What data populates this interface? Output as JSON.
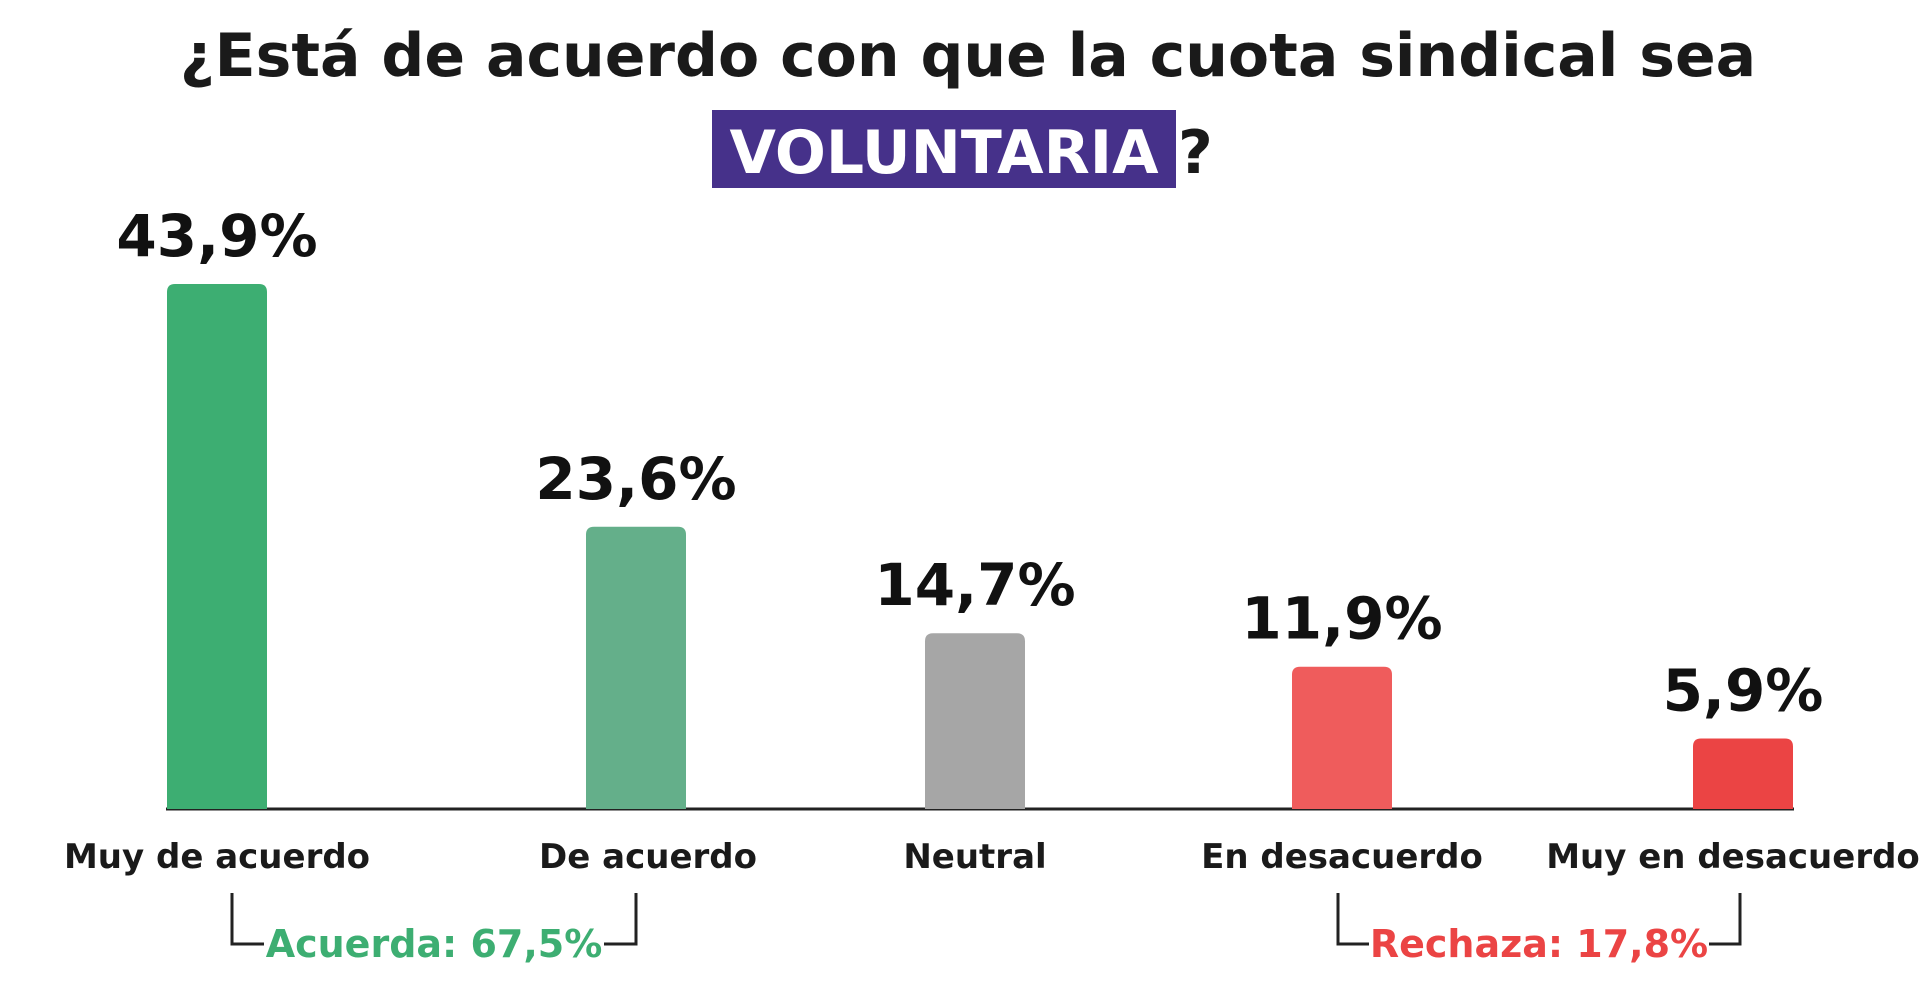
{
  "chart_data": {
    "type": "bar",
    "title": "¿Está de acuerdo con que la cuota sindical sea",
    "title_highlight": "VOLUNTARIA",
    "title_suffix": "?",
    "categories": [
      "Muy de acuerdo",
      "De acuerdo",
      "Neutral",
      "En desacuerdo",
      "Muy en desacuerdo"
    ],
    "values": [
      43.9,
      23.6,
      14.7,
      11.9,
      5.9
    ],
    "value_labels": [
      "43,9%",
      "23,6%",
      "14,7%",
      "11,9%",
      "5,9%"
    ],
    "colors": [
      "#3DAE72",
      "#64AF8A",
      "#A6A6A6",
      "#EF5C5C",
      "#EB4444"
    ],
    "highlight_color": "#46318A",
    "ylim": [
      0,
      43.9
    ],
    "grid": false,
    "legend": "none",
    "groups": [
      {
        "label": "Acuerda: 67,5%",
        "categories": [
          0,
          1
        ],
        "color": "#3DAE72"
      },
      {
        "label": "Rechaza: 17,8%",
        "categories": [
          3,
          4
        ],
        "color": "#EB4444"
      }
    ]
  }
}
